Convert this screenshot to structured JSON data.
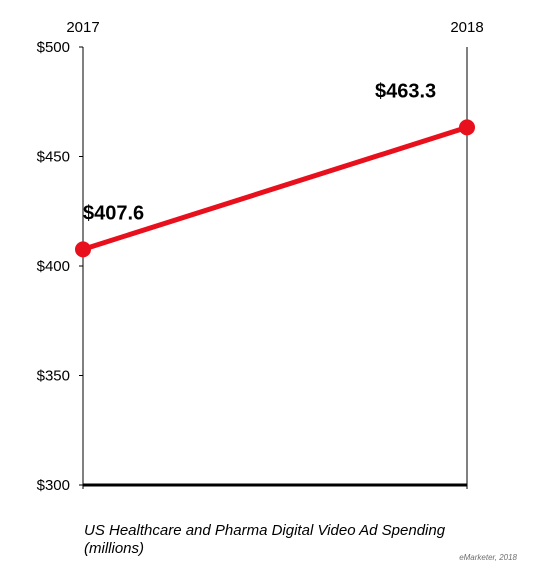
{
  "chart_data": {
    "type": "line",
    "categories": [
      "2017",
      "2018"
    ],
    "series": [
      {
        "values": [
          407.6,
          463.3
        ],
        "labels": [
          "$407.6",
          "$463.3"
        ],
        "color": "#e8101c"
      }
    ],
    "ylim": [
      300,
      500
    ],
    "yticks": [
      300,
      350,
      400,
      450,
      500
    ],
    "ytick_labels": [
      "$300",
      "$350",
      "$400",
      "$450",
      "$500"
    ],
    "grid": false,
    "axis_color": "#000000"
  },
  "caption": {
    "line1": "US Healthcare and Pharma Digital Video Ad Spending",
    "line2": "(millions)"
  },
  "source": "eMarketer, 2018"
}
